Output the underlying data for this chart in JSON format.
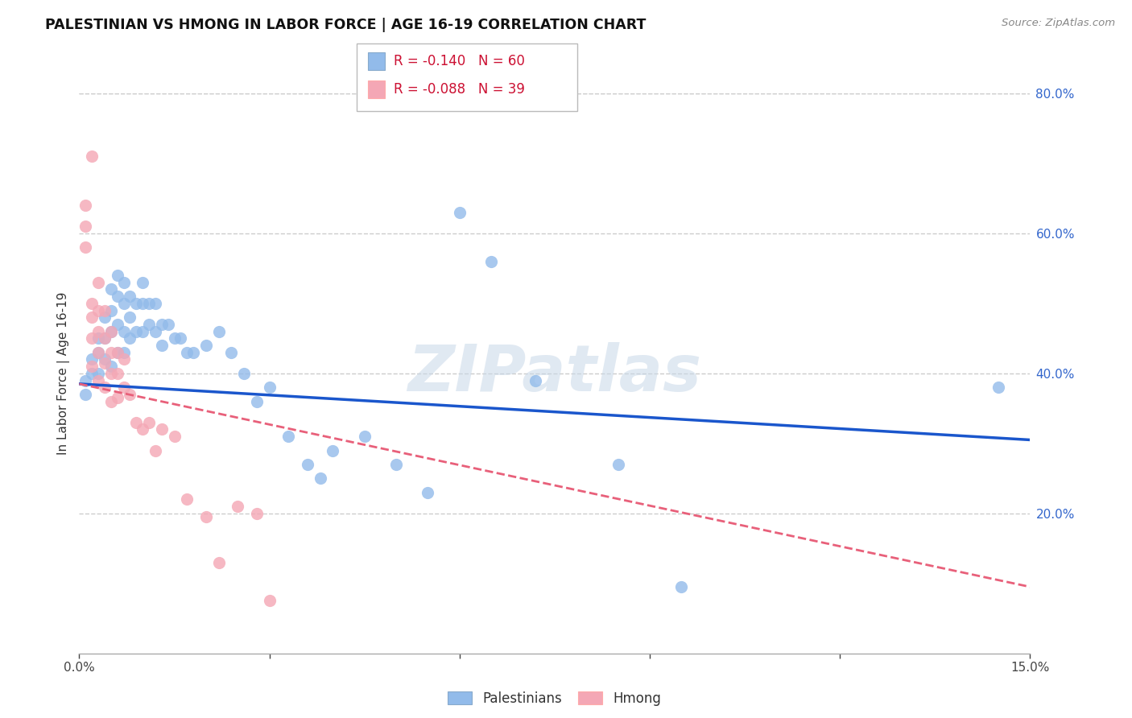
{
  "title": "PALESTINIAN VS HMONG IN LABOR FORCE | AGE 16-19 CORRELATION CHART",
  "source": "Source: ZipAtlas.com",
  "ylabel_label": "In Labor Force | Age 16-19",
  "xmin": 0.0,
  "xmax": 0.15,
  "ymin": 0.0,
  "ymax": 0.8,
  "legend_r_blue": "-0.140",
  "legend_n_blue": "60",
  "legend_r_pink": "-0.088",
  "legend_n_pink": "39",
  "blue_color": "#92BBEA",
  "pink_color": "#F4A7B5",
  "trend_blue_color": "#1A56CC",
  "trend_pink_color": "#E8607A",
  "trend_blue_y0": 0.385,
  "trend_blue_y1": 0.305,
  "trend_pink_y0": 0.385,
  "trend_pink_y1": 0.095,
  "palestinians_x": [
    0.001,
    0.001,
    0.002,
    0.002,
    0.003,
    0.003,
    0.003,
    0.004,
    0.004,
    0.004,
    0.005,
    0.005,
    0.005,
    0.005,
    0.006,
    0.006,
    0.006,
    0.006,
    0.007,
    0.007,
    0.007,
    0.007,
    0.008,
    0.008,
    0.008,
    0.009,
    0.009,
    0.01,
    0.01,
    0.01,
    0.011,
    0.011,
    0.012,
    0.012,
    0.013,
    0.013,
    0.014,
    0.015,
    0.016,
    0.017,
    0.018,
    0.02,
    0.022,
    0.024,
    0.026,
    0.028,
    0.03,
    0.033,
    0.036,
    0.038,
    0.04,
    0.045,
    0.05,
    0.055,
    0.06,
    0.065,
    0.072,
    0.085,
    0.095,
    0.145
  ],
  "palestinians_y": [
    0.39,
    0.37,
    0.42,
    0.4,
    0.45,
    0.43,
    0.4,
    0.48,
    0.45,
    0.42,
    0.52,
    0.49,
    0.46,
    0.41,
    0.54,
    0.51,
    0.47,
    0.43,
    0.53,
    0.5,
    0.46,
    0.43,
    0.51,
    0.48,
    0.45,
    0.5,
    0.46,
    0.53,
    0.5,
    0.46,
    0.5,
    0.47,
    0.5,
    0.46,
    0.47,
    0.44,
    0.47,
    0.45,
    0.45,
    0.43,
    0.43,
    0.44,
    0.46,
    0.43,
    0.4,
    0.36,
    0.38,
    0.31,
    0.27,
    0.25,
    0.29,
    0.31,
    0.27,
    0.23,
    0.63,
    0.56,
    0.39,
    0.27,
    0.095,
    0.38
  ],
  "hmong_x": [
    0.001,
    0.001,
    0.001,
    0.002,
    0.002,
    0.002,
    0.002,
    0.002,
    0.003,
    0.003,
    0.003,
    0.003,
    0.003,
    0.004,
    0.004,
    0.004,
    0.004,
    0.005,
    0.005,
    0.005,
    0.005,
    0.006,
    0.006,
    0.006,
    0.007,
    0.007,
    0.008,
    0.009,
    0.01,
    0.011,
    0.012,
    0.013,
    0.015,
    0.017,
    0.02,
    0.022,
    0.025,
    0.028,
    0.03
  ],
  "hmong_y": [
    0.64,
    0.61,
    0.58,
    0.71,
    0.5,
    0.48,
    0.45,
    0.41,
    0.53,
    0.49,
    0.46,
    0.43,
    0.39,
    0.49,
    0.45,
    0.415,
    0.38,
    0.46,
    0.43,
    0.4,
    0.36,
    0.43,
    0.4,
    0.365,
    0.42,
    0.38,
    0.37,
    0.33,
    0.32,
    0.33,
    0.29,
    0.32,
    0.31,
    0.22,
    0.195,
    0.13,
    0.21,
    0.2,
    0.075
  ]
}
